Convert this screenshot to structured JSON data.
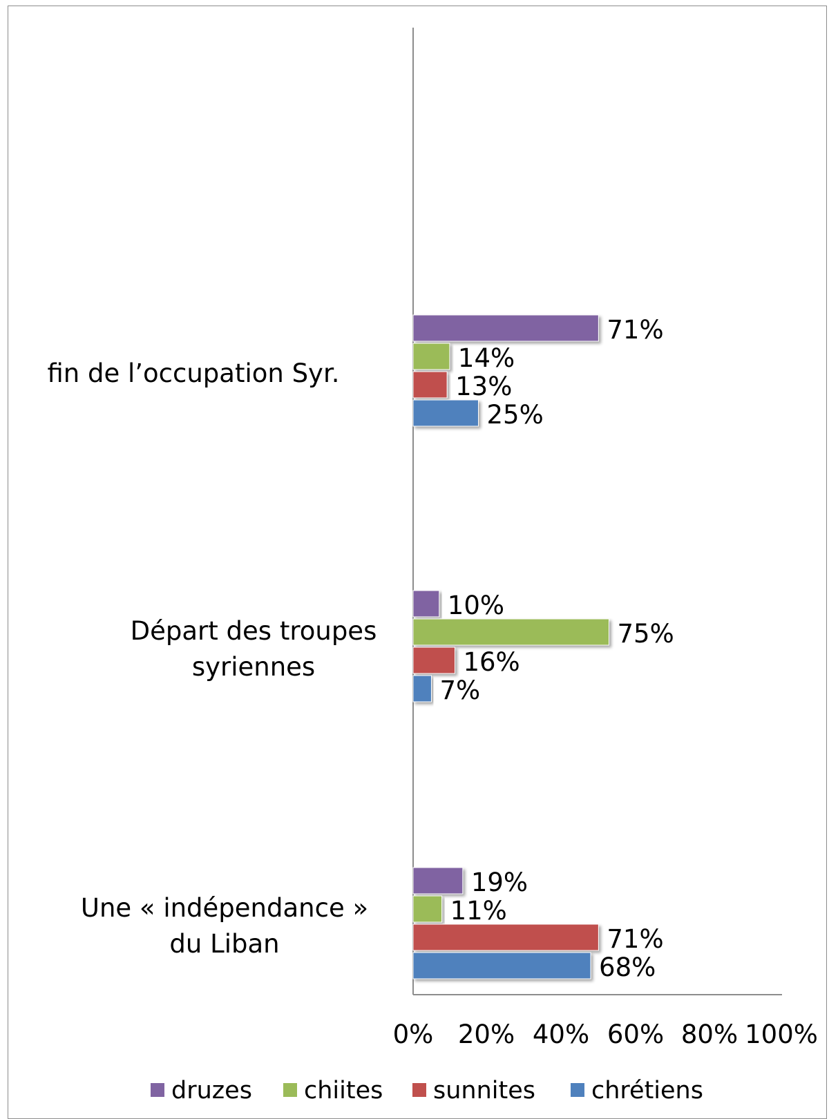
{
  "chart_data": {
    "type": "bar",
    "orientation": "horizontal",
    "title": "",
    "xlabel": "",
    "ylabel": "",
    "xlim": [
      0,
      100
    ],
    "x_ticks": [
      "0%",
      "20%",
      "40%",
      "60%",
      "80%",
      "100%"
    ],
    "grid": false,
    "legend_position": "bottom",
    "categories": [
      {
        "lines": [
          "fin de l’occupation Syr."
        ]
      },
      {
        "lines": [
          "Départ des troupes",
          "syriennes"
        ]
      },
      {
        "lines": [
          "Une « indépendance »",
          "du Liban"
        ]
      }
    ],
    "series": [
      {
        "name": "druzes",
        "color": "#8064A2",
        "values": [
          71,
          10,
          19
        ],
        "labels": [
          "71%",
          "10%",
          "19%"
        ]
      },
      {
        "name": "chiites",
        "color": "#9BBB59",
        "values": [
          14,
          75,
          11
        ],
        "labels": [
          "14%",
          "75%",
          "11%"
        ]
      },
      {
        "name": "sunnites",
        "color": "#C0504D",
        "values": [
          13,
          16,
          71
        ],
        "labels": [
          "13%",
          "16%",
          "71%"
        ]
      },
      {
        "name": "chrétiens",
        "color": "#4F81BD",
        "values": [
          25,
          7,
          68
        ],
        "labels": [
          "25%",
          "7%",
          "68%"
        ]
      }
    ]
  }
}
